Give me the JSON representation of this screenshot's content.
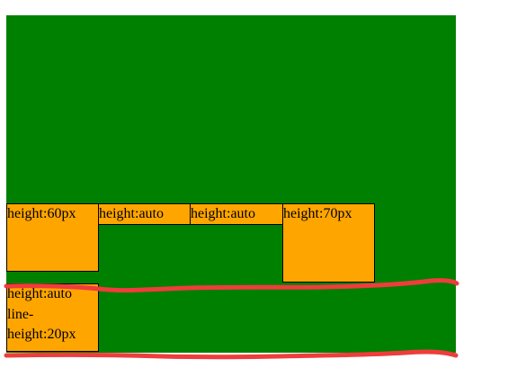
{
  "boxes": [
    {
      "label": "height:60px"
    },
    {
      "label": "height:auto"
    },
    {
      "label": "height:auto"
    },
    {
      "label": "height:70px"
    },
    {
      "lines": [
        "height:auto",
        "line-",
        "height:20px"
      ]
    }
  ],
  "colors": {
    "container": "#008000",
    "box": "#ffa500",
    "border": "#000000",
    "annotation": "#ef3c3c"
  }
}
